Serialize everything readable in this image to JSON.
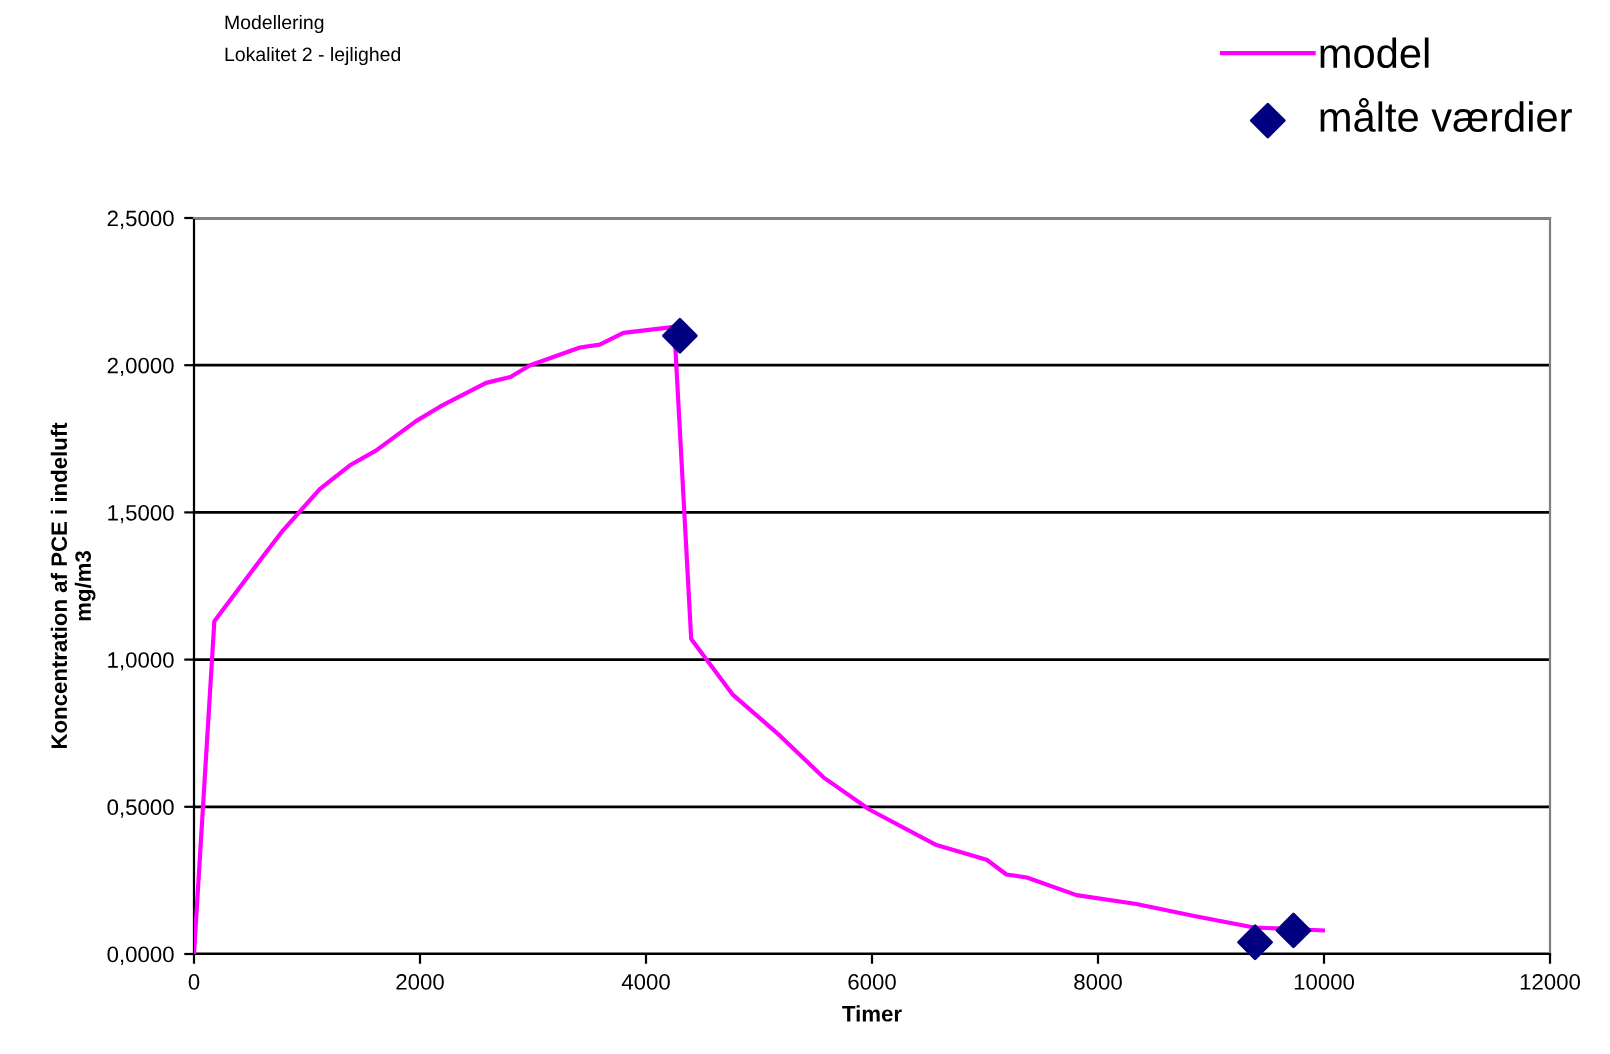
{
  "chart_data": {
    "type": "line",
    "title": "Modellering",
    "subtitle": "Lokalitet 2 - lejlighed",
    "xlabel": "Timer",
    "ylabel": "Koncentration af PCE i indeluft\nmg/m3",
    "xlim": [
      0,
      12000
    ],
    "xticks": [
      0,
      2000,
      4000,
      6000,
      8000,
      10000,
      12000
    ],
    "ylim": [
      0,
      2.5
    ],
    "yticks": [
      {
        "value": 0,
        "label": "0,0000"
      },
      {
        "value": 0.5,
        "label": "0,5000"
      },
      {
        "value": 1.0,
        "label": "1,0000"
      },
      {
        "value": 1.5,
        "label": "1,5000"
      },
      {
        "value": 2.0,
        "label": "2,0000"
      },
      {
        "value": 2.5,
        "label": "2,5000"
      }
    ],
    "grid": "y",
    "legend": "top right",
    "series": [
      {
        "name": "model",
        "color": "#ff00ff",
        "marker": "none",
        "line_style": "solid",
        "x": [
          0,
          180,
          610,
          790,
          1115,
          1380,
          1610,
          1965,
          2180,
          2585,
          2800,
          2975,
          3415,
          3590,
          3800,
          4250,
          4400,
          4770,
          5190,
          5570,
          5980,
          6570,
          7015,
          7190,
          7370,
          7810,
          8340,
          8840,
          9380,
          9990
        ],
        "values": [
          0,
          1.13,
          1.35,
          1.44,
          1.58,
          1.66,
          1.71,
          1.81,
          1.86,
          1.94,
          1.96,
          2.0,
          2.06,
          2.07,
          2.11,
          2.13,
          1.07,
          0.88,
          0.74,
          0.6,
          0.49,
          0.37,
          0.32,
          0.27,
          0.26,
          0.2,
          0.17,
          0.13,
          0.09,
          0.08
        ]
      },
      {
        "name": "målte værdier",
        "type": "scatter",
        "color": "#000080",
        "marker": "diamond",
        "x": [
          4300,
          9390,
          9730
        ],
        "values": [
          2.1,
          0.04,
          0.08
        ]
      }
    ]
  }
}
